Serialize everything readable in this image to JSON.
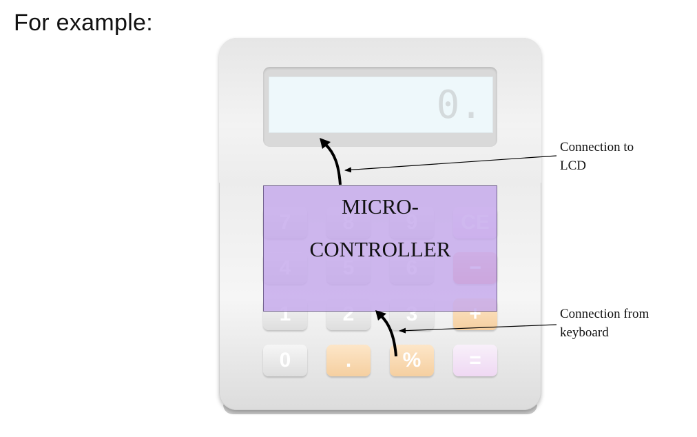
{
  "heading": "For example:",
  "lcd": {
    "display": "0."
  },
  "keypad": {
    "rows": [
      [
        {
          "label": "7",
          "style": "grey"
        },
        {
          "label": "8",
          "style": "grey"
        },
        {
          "label": "9",
          "style": "grey"
        },
        {
          "label": "CE",
          "style": "pink"
        }
      ],
      [
        {
          "label": "4",
          "style": "grey"
        },
        {
          "label": "5",
          "style": "grey"
        },
        {
          "label": "6",
          "style": "grey"
        },
        {
          "label": "−",
          "style": "red"
        }
      ],
      [
        {
          "label": "1",
          "style": "grey"
        },
        {
          "label": "2",
          "style": "grey"
        },
        {
          "label": "3",
          "style": "grey"
        },
        {
          "label": "+",
          "style": "orange"
        }
      ],
      [
        {
          "label": "0",
          "style": "grey"
        },
        {
          "label": ".",
          "style": "orange"
        },
        {
          "label": "%",
          "style": "orange"
        },
        {
          "label": "=",
          "style": "pink"
        }
      ]
    ]
  },
  "microcontroller": {
    "line1": "MICRO-",
    "line2": "CONTROLLER"
  },
  "annotations": {
    "lcd": {
      "line1": "Connection to",
      "line2": "LCD"
    },
    "keyboard": {
      "line1": "Connection from",
      "line2": "keyboard"
    }
  },
  "colors": {
    "microcontroller_fill": "#c4a8ec",
    "arrow": "#000000"
  }
}
